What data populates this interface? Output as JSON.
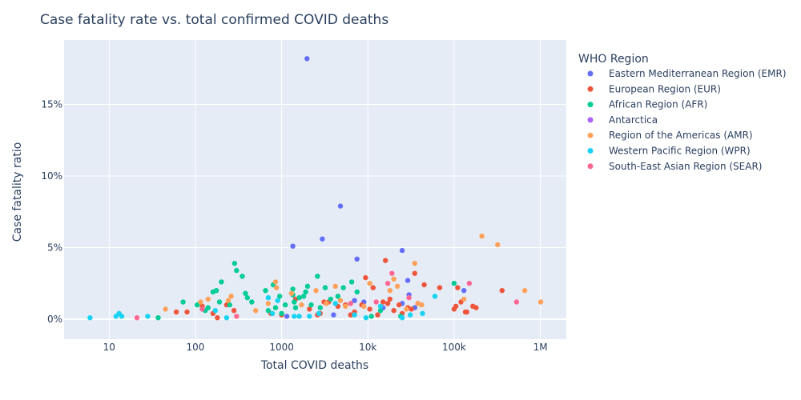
{
  "chart_data": {
    "type": "scatter",
    "title": "Case fatality rate vs. total confirmed COVID deaths",
    "xlabel": "Total COVID deaths",
    "ylabel": "Case fatality ratio",
    "x_scale": "log",
    "xlim": [
      3,
      2000000
    ],
    "ylim": [
      -1.4,
      19.5
    ],
    "x_ticks": [
      {
        "value": 10,
        "label": "10"
      },
      {
        "value": 100,
        "label": "100"
      },
      {
        "value": 1000,
        "label": "1000"
      },
      {
        "value": 10000,
        "label": "10k"
      },
      {
        "value": 100000,
        "label": "100k"
      },
      {
        "value": 1000000,
        "label": "1M"
      }
    ],
    "y_ticks": [
      {
        "value": 0,
        "label": "0%"
      },
      {
        "value": 5,
        "label": "5%"
      },
      {
        "value": 10,
        "label": "10%"
      },
      {
        "value": 15,
        "label": "15%"
      }
    ],
    "grid": true,
    "legend_title": "WHO Region",
    "legend_position": "right",
    "series": [
      {
        "name": "Eastern Mediterranean Region (EMR)",
        "color": "#636efa",
        "points": [
          [
            1970,
            18.2
          ],
          [
            4800,
            7.9
          ],
          [
            2960,
            5.6
          ],
          [
            1350,
            5.1
          ],
          [
            7480,
            4.2
          ],
          [
            25000,
            4.8
          ],
          [
            29000,
            2.7
          ],
          [
            30000,
            1.7
          ],
          [
            35000,
            0.8
          ],
          [
            130000,
            2.0
          ],
          [
            9000,
            1.2
          ],
          [
            1150,
            0.2
          ],
          [
            25000,
            1.1
          ],
          [
            15000,
            0.8
          ],
          [
            7000,
            1.3
          ],
          [
            4000,
            0.3
          ]
        ]
      },
      {
        "name": "European Region (EUR)",
        "color": "#EF553B",
        "points": [
          [
            60,
            0.5
          ],
          [
            80,
            0.5
          ],
          [
            120,
            0.9
          ],
          [
            160,
            0.4
          ],
          [
            180,
            0.1
          ],
          [
            230,
            1.0
          ],
          [
            280,
            0.6
          ],
          [
            750,
            0.4
          ],
          [
            1000,
            0.3
          ],
          [
            1450,
            1.4
          ],
          [
            2100,
            0.7
          ],
          [
            2800,
            0.4
          ],
          [
            3500,
            1.2
          ],
          [
            4500,
            0.9
          ],
          [
            5500,
            1.0
          ],
          [
            6300,
            0.3
          ],
          [
            7000,
            0.5
          ],
          [
            8500,
            1.0
          ],
          [
            9400,
            2.9
          ],
          [
            10500,
            0.7
          ],
          [
            11500,
            2.2
          ],
          [
            13000,
            0.3
          ],
          [
            15000,
            1.2
          ],
          [
            16000,
            4.1
          ],
          [
            17000,
            1.1
          ],
          [
            18000,
            1.4
          ],
          [
            20000,
            0.6
          ],
          [
            23000,
            1.0
          ],
          [
            25000,
            0.4
          ],
          [
            29000,
            0.8
          ],
          [
            32000,
            0.7
          ],
          [
            35000,
            3.2
          ],
          [
            38000,
            1.1
          ],
          [
            45000,
            2.4
          ],
          [
            68000,
            2.2
          ],
          [
            100000,
            0.7
          ],
          [
            110000,
            2.2
          ],
          [
            120000,
            1.2
          ],
          [
            140000,
            0.5
          ],
          [
            165000,
            0.9
          ],
          [
            180000,
            0.8
          ],
          [
            360000,
            2.0
          ],
          [
            105000,
            0.9
          ],
          [
            135000,
            0.5
          ],
          [
            3100,
            1.2
          ],
          [
            2600,
            0.3
          ]
        ]
      },
      {
        "name": "African Region (AFR)",
        "color": "#00cc96",
        "points": [
          [
            37,
            0.1
          ],
          [
            72,
            1.2
          ],
          [
            105,
            1.0
          ],
          [
            130,
            0.6
          ],
          [
            120,
            0.7
          ],
          [
            140,
            0.8
          ],
          [
            160,
            1.9
          ],
          [
            175,
            2.0
          ],
          [
            200,
            2.6
          ],
          [
            250,
            1.0
          ],
          [
            285,
            3.9
          ],
          [
            300,
            3.4
          ],
          [
            350,
            3.0
          ],
          [
            380,
            1.8
          ],
          [
            450,
            1.2
          ],
          [
            650,
            2.0
          ],
          [
            700,
            0.6
          ],
          [
            800,
            2.4
          ],
          [
            850,
            0.8
          ],
          [
            950,
            1.6
          ],
          [
            1000,
            0.4
          ],
          [
            1100,
            1.0
          ],
          [
            1350,
            2.1
          ],
          [
            1400,
            1.2
          ],
          [
            1450,
            0.8
          ],
          [
            1600,
            1.5
          ],
          [
            1900,
            1.9
          ],
          [
            2000,
            2.3
          ],
          [
            2200,
            1.0
          ],
          [
            2600,
            3.0
          ],
          [
            2800,
            0.8
          ],
          [
            3200,
            2.2
          ],
          [
            3700,
            1.4
          ],
          [
            4500,
            1.6
          ],
          [
            5200,
            2.2
          ],
          [
            6500,
            2.6
          ],
          [
            7500,
            1.9
          ],
          [
            11000,
            0.2
          ],
          [
            14000,
            0.6
          ],
          [
            24000,
            0.2
          ],
          [
            100000,
            2.5
          ],
          [
            1800,
            1.6
          ],
          [
            400,
            1.5
          ],
          [
            190,
            1.2
          ],
          [
            1350,
            1.7
          ]
        ]
      },
      {
        "name": "Antarctica",
        "color": "#ab63fa",
        "points": []
      },
      {
        "name": "Region of the Americas (AMR)",
        "color": "#FFA15A",
        "points": [
          [
            45,
            0.7
          ],
          [
            115,
            1.2
          ],
          [
            140,
            1.4
          ],
          [
            240,
            1.3
          ],
          [
            260,
            1.6
          ],
          [
            500,
            0.6
          ],
          [
            700,
            1.1
          ],
          [
            850,
            2.6
          ],
          [
            870,
            2.2
          ],
          [
            1300,
            1.8
          ],
          [
            1700,
            1.0
          ],
          [
            2500,
            2.0
          ],
          [
            3300,
            1.1
          ],
          [
            4200,
            2.3
          ],
          [
            4800,
            1.3
          ],
          [
            5500,
            0.9
          ],
          [
            9000,
            0.9
          ],
          [
            10500,
            2.5
          ],
          [
            18000,
            2.0
          ],
          [
            20000,
            2.8
          ],
          [
            22000,
            2.3
          ],
          [
            35000,
            3.9
          ],
          [
            38000,
            1.1
          ],
          [
            130000,
            1.4
          ],
          [
            210000,
            5.8
          ],
          [
            320000,
            5.2
          ],
          [
            660000,
            2.0
          ],
          [
            1010000,
            1.2
          ],
          [
            28000,
            0.7
          ],
          [
            42000,
            1.0
          ]
        ]
      },
      {
        "name": "Western Pacific Region (WPR)",
        "color": "#19d3f3",
        "points": [
          [
            6,
            0.1
          ],
          [
            12,
            0.2
          ],
          [
            13,
            0.4
          ],
          [
            14,
            0.2
          ],
          [
            28,
            0.2
          ],
          [
            170,
            0.6
          ],
          [
            230,
            0.1
          ],
          [
            700,
            1.5
          ],
          [
            780,
            0.4
          ],
          [
            900,
            1.3
          ],
          [
            1400,
            0.2
          ],
          [
            1600,
            0.2
          ],
          [
            2100,
            0.2
          ],
          [
            2700,
            0.4
          ],
          [
            4200,
            1.1
          ],
          [
            7000,
            0.3
          ],
          [
            9500,
            0.1
          ],
          [
            14000,
            0.9
          ],
          [
            25000,
            0.1
          ],
          [
            31000,
            0.3
          ],
          [
            43000,
            0.4
          ],
          [
            60000,
            1.6
          ]
        ]
      },
      {
        "name": "South-East Asian Region (SEAR)",
        "color": "#FF6692",
        "points": [
          [
            21,
            0.1
          ],
          [
            120,
            0.7
          ],
          [
            300,
            0.2
          ],
          [
            6300,
            1.1
          ],
          [
            12500,
            1.2
          ],
          [
            17000,
            2.5
          ],
          [
            19000,
            3.2
          ],
          [
            30000,
            1.5
          ],
          [
            150000,
            2.5
          ],
          [
            530000,
            1.2
          ]
        ]
      }
    ]
  }
}
